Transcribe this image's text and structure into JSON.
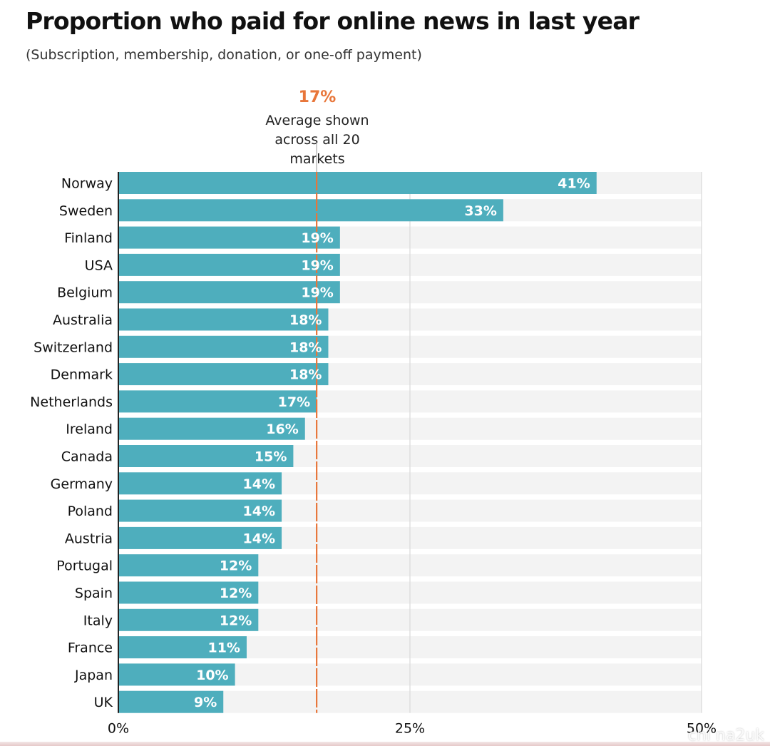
{
  "title": "Proportion who paid for online news in last year",
  "subtitle": "(Subscription, membership, donation, or one-off payment)",
  "average": {
    "value_label": "17%",
    "note_lines": [
      "Average shown",
      "across all 20",
      "markets"
    ],
    "value": 17
  },
  "watermark": "chi na2uk",
  "colors": {
    "bar": "#4eaebd",
    "track": "#f3f3f3",
    "average_line": "#e8763a",
    "grid": "#d9d9d9",
    "axis": "#222222"
  },
  "chart_data": {
    "type": "bar",
    "orientation": "horizontal",
    "title": "Proportion who paid for online news in last year",
    "subtitle": "(Subscription, membership, donation, or one-off payment)",
    "xlim": [
      0,
      50
    ],
    "ticks": [
      0,
      25,
      50
    ],
    "tick_labels": [
      "0%",
      "25%",
      "50%"
    ],
    "grid": true,
    "categories": [
      "Norway",
      "Sweden",
      "Finland",
      "USA",
      "Belgium",
      "Australia",
      "Switzerland",
      "Denmark",
      "Netherlands",
      "Ireland",
      "Canada",
      "Germany",
      "Poland",
      "Austria",
      "Portugal",
      "Spain",
      "Italy",
      "France",
      "Japan",
      "UK"
    ],
    "values": [
      41,
      33,
      19,
      19,
      19,
      18,
      18,
      18,
      17,
      16,
      15,
      14,
      14,
      14,
      12,
      12,
      12,
      11,
      10,
      9
    ],
    "value_labels": [
      "41%",
      "33%",
      "19%",
      "19%",
      "19%",
      "18%",
      "18%",
      "18%",
      "17%",
      "16%",
      "15%",
      "14%",
      "14%",
      "14%",
      "12%",
      "12%",
      "12%",
      "11%",
      "10%",
      "9%"
    ],
    "reference_line": {
      "value": 17,
      "label": "17%"
    }
  }
}
